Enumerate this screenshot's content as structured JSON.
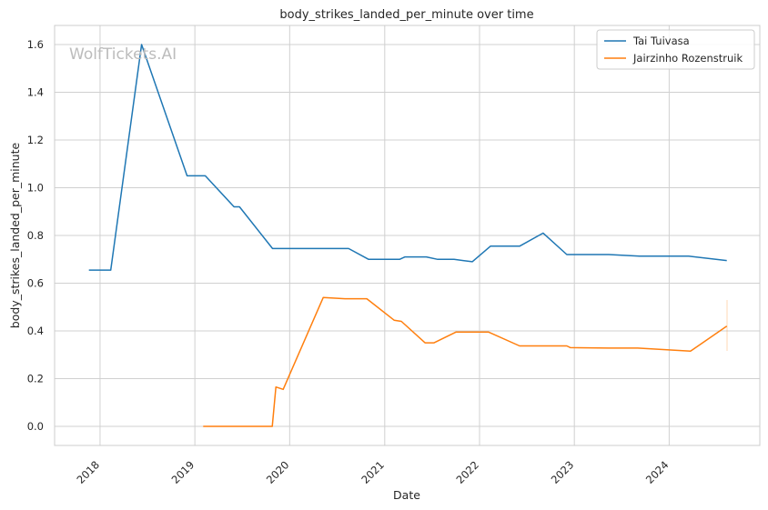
{
  "chart_data": {
    "type": "line",
    "title": "body_strikes_landed_per_minute over time",
    "xlabel": "Date",
    "ylabel": "body_strikes_landed_per_minute",
    "watermark": "WolfTickets.AI",
    "xlim": [
      "2017-07-10",
      "2024-12-15"
    ],
    "ylim": [
      -0.08,
      1.68
    ],
    "x_ticks": [
      "2018",
      "2019",
      "2020",
      "2021",
      "2022",
      "2023",
      "2024"
    ],
    "y_ticks": [
      "0.0",
      "0.2",
      "0.4",
      "0.6",
      "0.8",
      "1.0",
      "1.2",
      "1.4",
      "1.6"
    ],
    "grid": true,
    "legend_position": "top-right",
    "colors": {
      "Tai Tuivasa": "#1f77b4",
      "Jairzinho Rozenstruik": "#ff7f0e"
    },
    "series": [
      {
        "name": "Tai Tuivasa",
        "points": [
          [
            "2017-11-19",
            0.655
          ],
          [
            "2018-02-11",
            0.655
          ],
          [
            "2018-06-10",
            1.6
          ],
          [
            "2018-12-02",
            1.05
          ],
          [
            "2019-02-10",
            1.05
          ],
          [
            "2019-06-01",
            0.92
          ],
          [
            "2019-06-22",
            0.92
          ],
          [
            "2019-10-27",
            0.745
          ],
          [
            "2020-08-15",
            0.745
          ],
          [
            "2020-10-31",
            0.7
          ],
          [
            "2021-02-27",
            0.7
          ],
          [
            "2021-03-20",
            0.71
          ],
          [
            "2021-06-10",
            0.71
          ],
          [
            "2021-07-24",
            0.7
          ],
          [
            "2021-09-25",
            0.7
          ],
          [
            "2021-12-04",
            0.69
          ],
          [
            "2022-02-12",
            0.755
          ],
          [
            "2022-06-04",
            0.755
          ],
          [
            "2022-09-03",
            0.81
          ],
          [
            "2022-12-03",
            0.72
          ],
          [
            "2023-05-13",
            0.72
          ],
          [
            "2023-09-09",
            0.713
          ],
          [
            "2024-03-16",
            0.713
          ],
          [
            "2024-08-10",
            0.695
          ]
        ]
      },
      {
        "name": "Jairzinho Rozenstruik",
        "points": [
          [
            "2019-02-02",
            0.0
          ],
          [
            "2019-10-26",
            0.0
          ],
          [
            "2019-11-09",
            0.165
          ],
          [
            "2019-12-07",
            0.155
          ],
          [
            "2020-05-09",
            0.54
          ],
          [
            "2020-08-01",
            0.535
          ],
          [
            "2020-10-24",
            0.535
          ],
          [
            "2021-02-06",
            0.445
          ],
          [
            "2021-03-06",
            0.44
          ],
          [
            "2021-06-05",
            0.35
          ],
          [
            "2021-07-10",
            0.35
          ],
          [
            "2021-10-02",
            0.395
          ],
          [
            "2022-02-05",
            0.395
          ],
          [
            "2022-06-04",
            0.337
          ],
          [
            "2022-12-03",
            0.337
          ],
          [
            "2022-12-17",
            0.33
          ],
          [
            "2023-05-13",
            0.328
          ],
          [
            "2023-09-02",
            0.328
          ],
          [
            "2024-03-23",
            0.315
          ],
          [
            "2024-08-10",
            0.42
          ]
        ]
      }
    ]
  }
}
